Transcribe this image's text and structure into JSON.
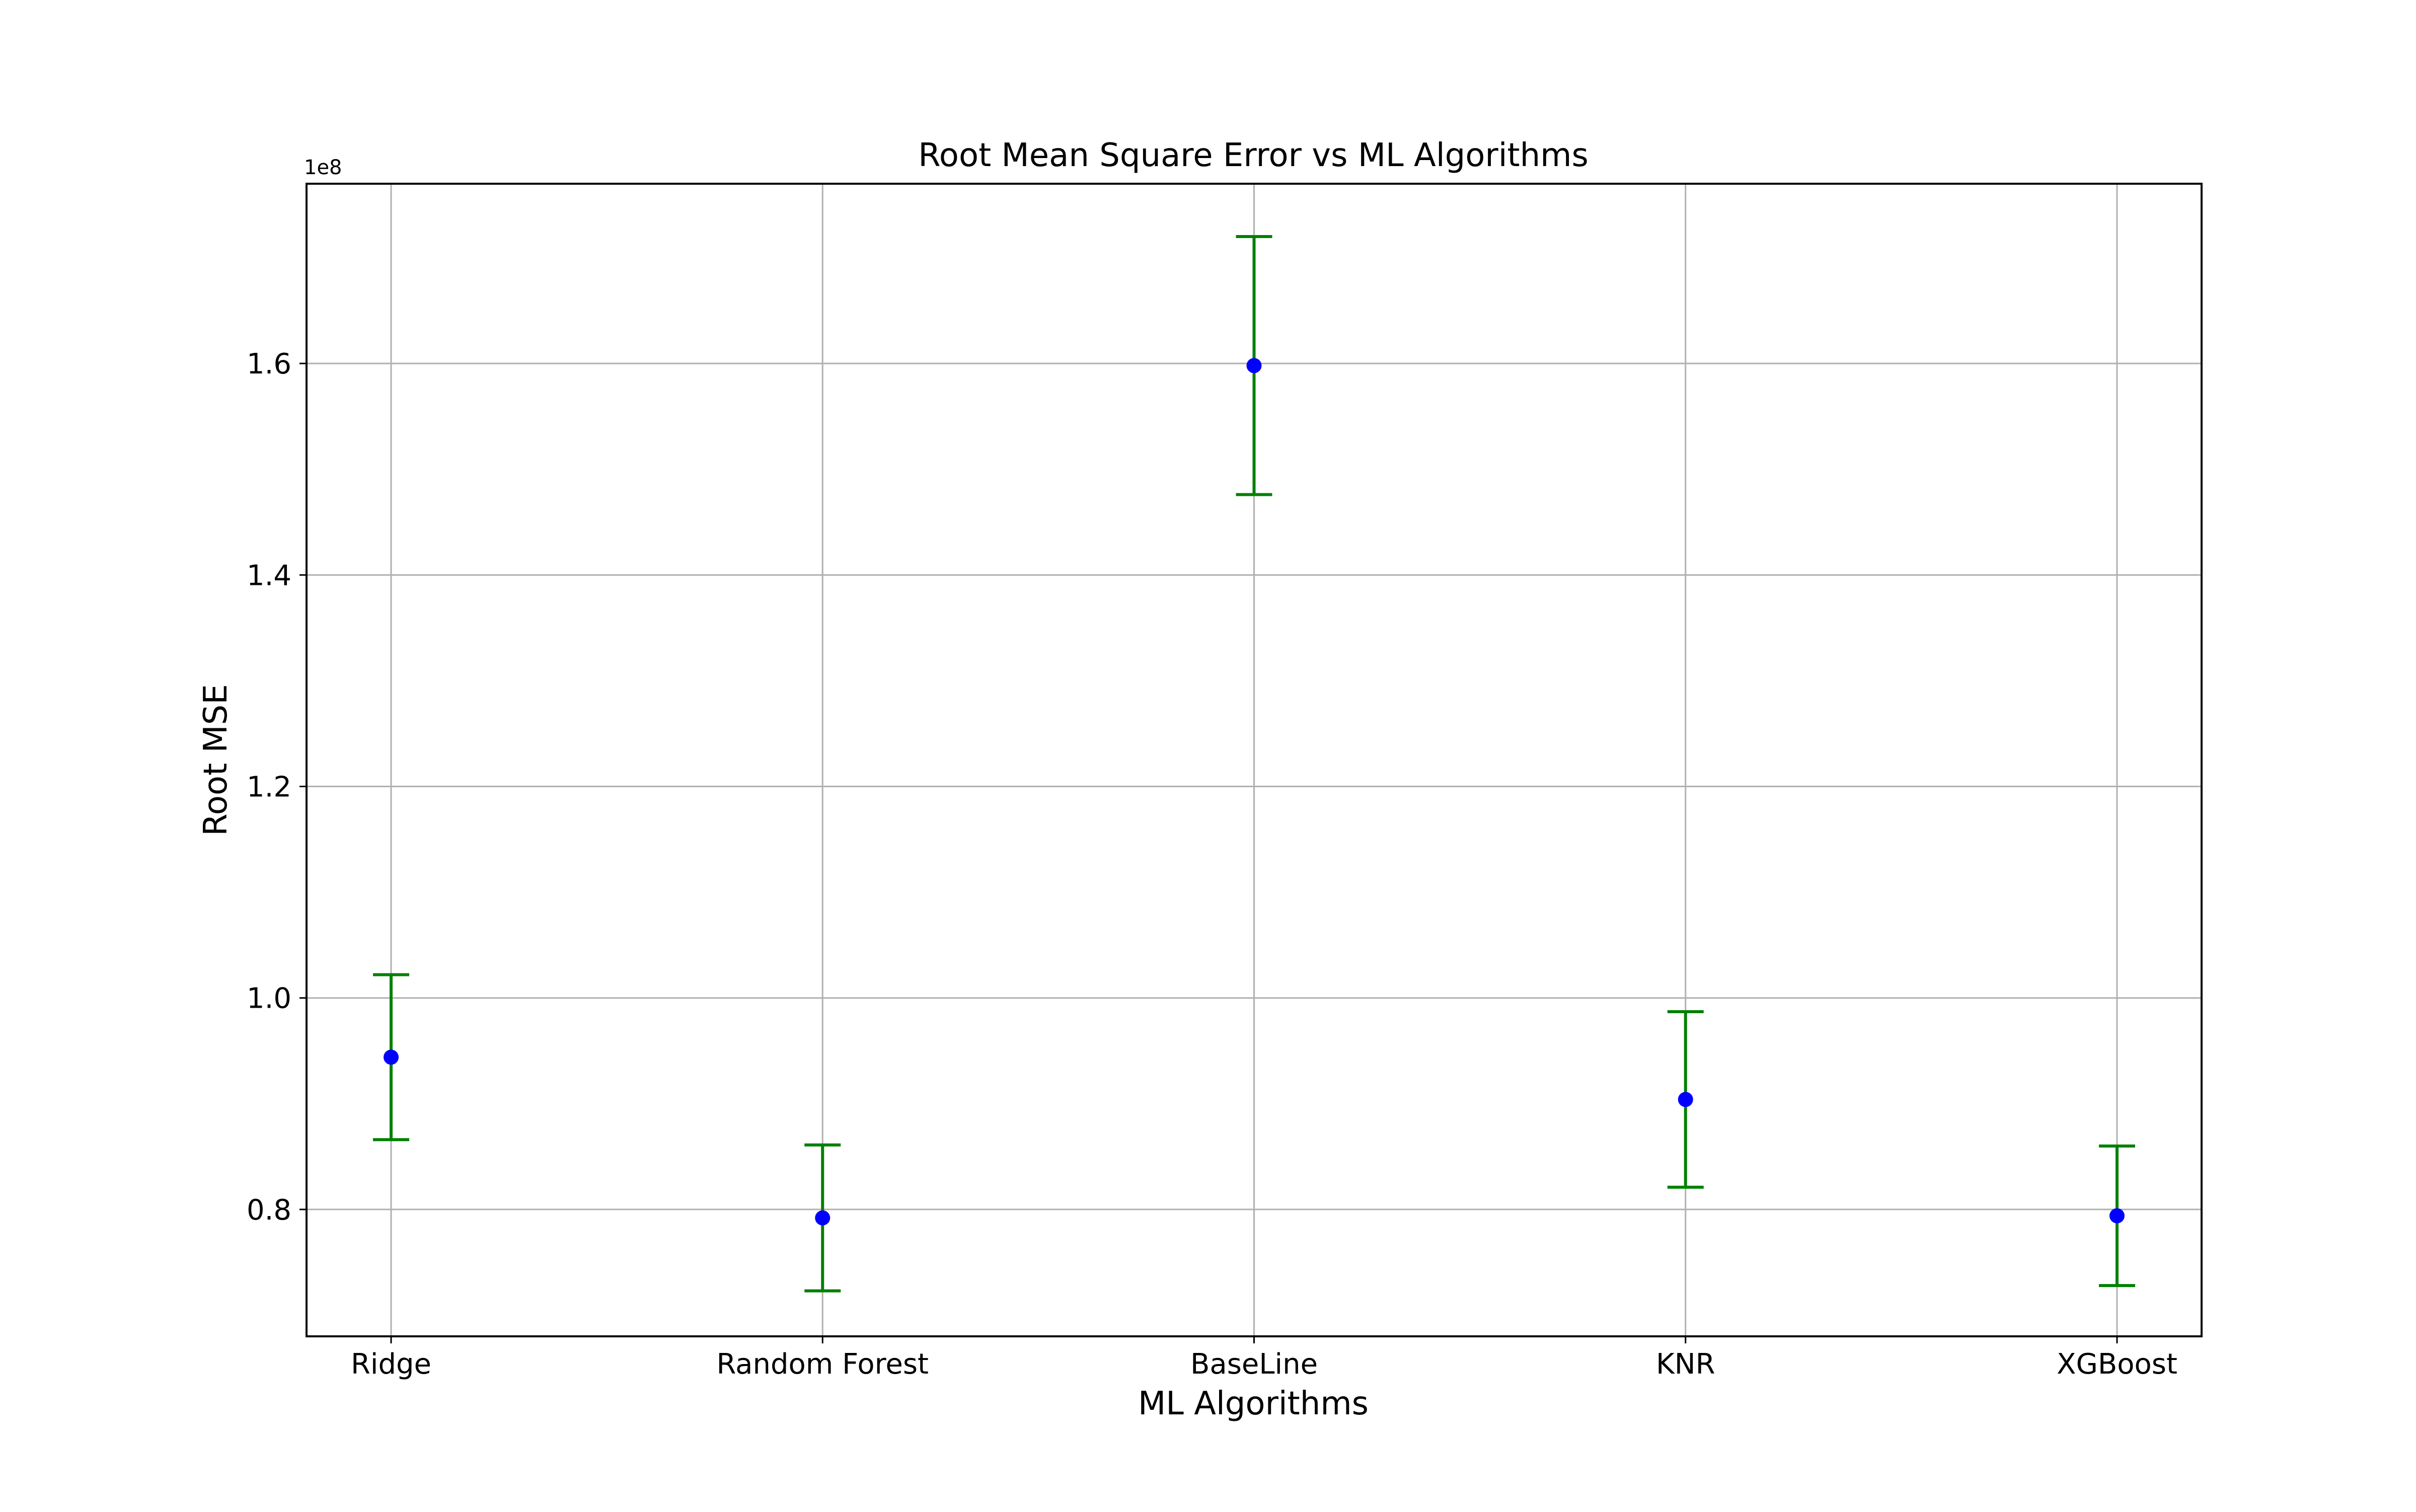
{
  "chart_data": {
    "type": "scatter",
    "title": "Root Mean Square Error vs ML Algorithms",
    "xlabel": "ML Algorithms",
    "ylabel": "Root MSE",
    "y_scale_label": "1e8",
    "categories": [
      "Ridge",
      "Random Forest",
      "BaseLine",
      "KNR",
      "XGBoost"
    ],
    "values": [
      94400000,
      79200000,
      159800000,
      90400000,
      79400000
    ],
    "error": [
      7800000,
      6900000,
      12200000,
      8300000,
      6600000
    ],
    "ylim": [
      68000000,
      177000000
    ],
    "yticks": [
      80000000,
      100000000,
      120000000,
      140000000,
      160000000
    ],
    "ytick_labels": [
      "0.8",
      "1.0",
      "1.2",
      "1.4",
      "1.6"
    ],
    "grid": true,
    "colors": {
      "marker": "#0000ff",
      "errorbar": "#008000",
      "grid": "#b0b0b0",
      "axis": "#000000"
    }
  }
}
